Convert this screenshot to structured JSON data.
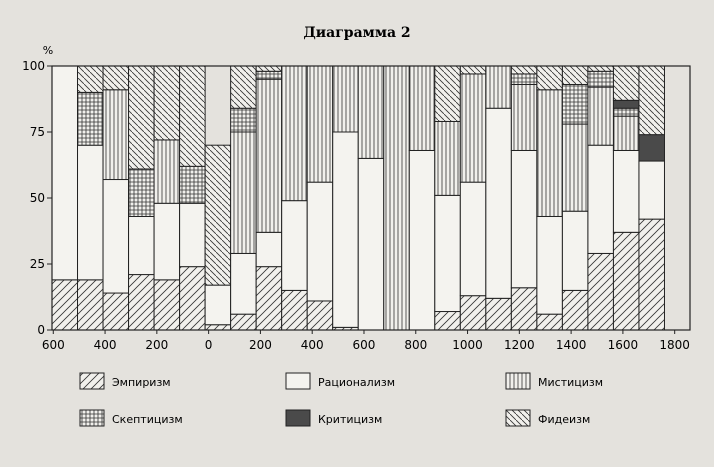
{
  "chart_data": {
    "type": "bar",
    "stacked": true,
    "percent": true,
    "title": "Диаграмма 2",
    "ylabel": "%",
    "xlabel": "",
    "ylim": [
      0,
      100
    ],
    "yticks": [
      0,
      25,
      50,
      75,
      100
    ],
    "xtick_labels": [
      "600",
      "400",
      "200",
      "0",
      "200",
      "400",
      "600",
      "800",
      "1000",
      "1200",
      "1400",
      "1600",
      "1800"
    ],
    "grid": false,
    "legend_placement": "bottom",
    "bar_count": 25,
    "series": [
      {
        "name": "Эмпиризм",
        "pattern": "diagonal-forward",
        "values": [
          19,
          19,
          14,
          21,
          19,
          24,
          2,
          6,
          24,
          15,
          11,
          1,
          0,
          0,
          0,
          7,
          13,
          12,
          16,
          6,
          15,
          29,
          37,
          42,
          0
        ]
      },
      {
        "name": "Рационализм",
        "pattern": "plain",
        "values": [
          81,
          51,
          43,
          22,
          29,
          24,
          15,
          23,
          13,
          34,
          45,
          74,
          65,
          0,
          68,
          44,
          43,
          72,
          52,
          37,
          30,
          41,
          31,
          22,
          0
        ]
      },
      {
        "name": "Мистицизм",
        "pattern": "vertical",
        "values": [
          0,
          0,
          34,
          0,
          24,
          0,
          0,
          46,
          58,
          51,
          44,
          25,
          35,
          100,
          32,
          28,
          41,
          16,
          25,
          48,
          33,
          22,
          13,
          0,
          0
        ]
      },
      {
        "name": "Скептицизм",
        "pattern": "grid",
        "values": [
          0,
          20,
          0,
          18,
          0,
          14,
          0,
          9,
          3,
          0,
          0,
          0,
          0,
          0,
          0,
          0,
          0,
          0,
          4,
          0,
          15,
          6,
          3,
          0,
          0
        ]
      },
      {
        "name": "Критицизм",
        "pattern": "dark",
        "values": [
          0,
          0,
          0,
          0,
          0,
          0,
          0,
          0,
          0,
          0,
          0,
          0,
          0,
          0,
          0,
          0,
          0,
          0,
          0,
          0,
          0,
          0,
          3,
          10,
          0
        ]
      },
      {
        "name": "Фидеизм",
        "pattern": "diagonal-back",
        "values": [
          0,
          10,
          9,
          39,
          28,
          38,
          53,
          16,
          2,
          0,
          0,
          0,
          0,
          0,
          0,
          21,
          3,
          0,
          3,
          9,
          7,
          2,
          13,
          26,
          0
        ]
      }
    ]
  }
}
